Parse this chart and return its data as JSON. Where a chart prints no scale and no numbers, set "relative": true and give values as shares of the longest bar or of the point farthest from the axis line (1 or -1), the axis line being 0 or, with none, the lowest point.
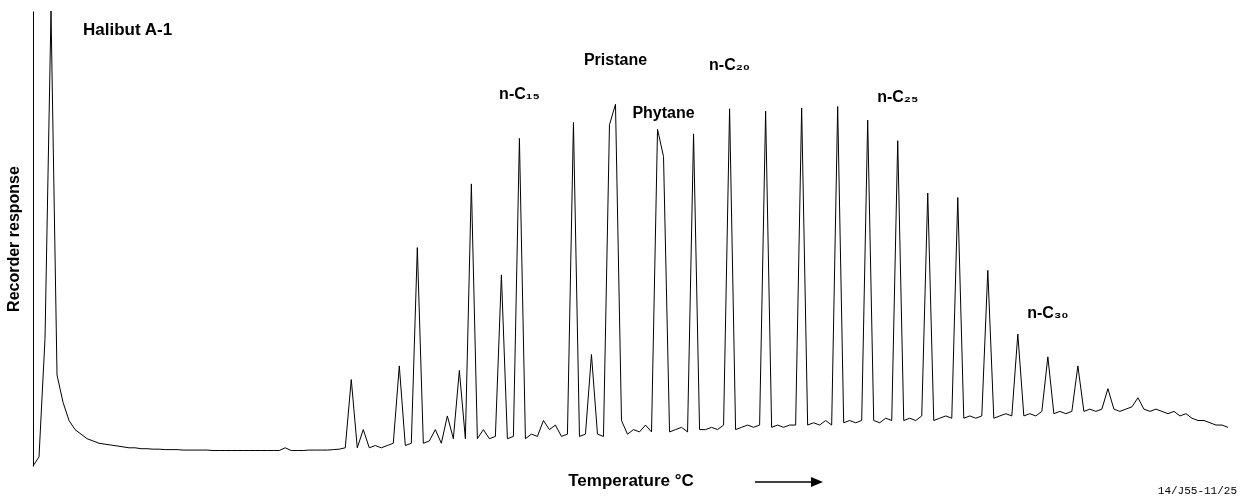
{
  "chart_data": {
    "type": "line",
    "title": "Halibut A-1",
    "xlabel": "Temperature °C",
    "ylabel": "Recorder response",
    "relative": true,
    "color": "#000000",
    "annotations": [
      {
        "text": "n-C₁₅",
        "y": 0.72
      },
      {
        "text": "Pristane",
        "y": 0.795
      },
      {
        "text": "Phytane",
        "y": 0.68
      },
      {
        "text": "n-C₂₀",
        "y": 0.785
      },
      {
        "text": "n-C₂₅",
        "y": 0.715
      },
      {
        "text": "n-C₃₀",
        "y": 0.24
      },
      "14/J55-11/25"
    ],
    "categories": [
      null,
      null,
      null,
      null,
      null,
      null,
      null,
      null,
      null,
      null,
      null,
      null,
      null,
      null,
      null,
      null,
      null,
      null,
      null,
      null,
      null,
      null,
      null,
      null,
      null,
      null,
      null,
      null,
      null,
      null,
      null,
      null,
      null,
      null,
      null,
      null,
      null,
      null,
      null,
      null,
      null,
      null,
      null,
      null,
      null,
      null,
      null,
      null,
      null,
      null,
      null,
      null,
      null,
      null,
      null,
      null,
      null,
      null,
      null,
      null,
      null,
      null,
      null,
      null,
      null,
      null,
      null,
      null,
      null,
      null,
      null,
      null,
      null,
      null,
      null,
      null,
      null,
      null,
      null,
      null,
      null,
      null,
      null,
      null,
      null,
      null,
      null,
      null,
      null,
      null,
      null,
      null,
      null,
      null,
      null,
      null,
      null,
      null,
      null,
      null,
      null,
      null,
      null,
      null,
      null,
      null,
      null,
      null,
      null,
      null,
      null,
      null,
      null,
      null,
      null,
      null,
      null,
      null,
      null,
      null,
      null,
      null,
      null,
      null,
      null,
      null,
      null,
      null,
      null,
      null,
      null,
      null,
      null,
      null,
      null,
      null,
      null,
      null,
      null,
      null,
      null,
      null,
      null,
      null,
      null,
      null,
      null,
      null,
      null,
      null,
      null,
      null,
      null,
      null,
      null,
      null,
      null,
      null,
      null,
      null,
      null,
      null,
      null,
      null,
      null,
      null,
      null,
      null,
      null,
      null,
      null,
      null,
      null,
      null,
      null,
      null,
      null,
      null,
      null,
      null,
      null,
      null,
      null,
      null,
      null,
      null,
      null,
      null,
      null,
      null,
      null,
      null,
      null,
      null,
      null,
      null,
      null,
      null,
      null,
      null
    ],
    "values": [
      0,
      0.02,
      0.28,
      1,
      0.2,
      0.14,
      0.1,
      0.08,
      0.07,
      0.06,
      0.055,
      0.05,
      0.048,
      0.046,
      0.044,
      0.042,
      0.04,
      0.04,
      0.038,
      0.038,
      0.037,
      0.037,
      0.036,
      0.036,
      0.036,
      0.035,
      0.035,
      0.035,
      0.035,
      0.035,
      0.034,
      0.034,
      0.034,
      0.034,
      0.034,
      0.034,
      0.034,
      0.034,
      0.034,
      0.034,
      0.034,
      0.034,
      0.04,
      0.034,
      0.034,
      0.034,
      0.035,
      0.035,
      0.035,
      0.035,
      0.036,
      0.037,
      0.04,
      0.19,
      0.04,
      0.08,
      0.04,
      0.045,
      0.04,
      0.045,
      0.05,
      0.22,
      0.045,
      0.05,
      0.48,
      0.05,
      0.055,
      0.08,
      0.05,
      0.11,
      0.06,
      0.21,
      0.06,
      0.62,
      0.06,
      0.08,
      0.06,
      0.065,
      0.42,
      0.06,
      0.065,
      0.72,
      0.06,
      0.07,
      0.065,
      0.1,
      0.08,
      0.09,
      0.065,
      0.07,
      0.755,
      0.065,
      0.07,
      0.245,
      0.07,
      0.065,
      0.75,
      0.795,
      0.1,
      0.07,
      0.08,
      0.075,
      0.09,
      0.075,
      0.74,
      0.68,
      0.075,
      0.08,
      0.085,
      0.075,
      0.73,
      0.08,
      0.08,
      0.085,
      0.08,
      0.09,
      0.785,
      0.08,
      0.085,
      0.09,
      0.085,
      0.09,
      0.78,
      0.085,
      0.09,
      0.085,
      0.09,
      0.09,
      0.787,
      0.09,
      0.095,
      0.09,
      0.1,
      0.09,
      0.79,
      0.095,
      0.1,
      0.095,
      0.1,
      0.76,
      0.1,
      0.095,
      0.105,
      0.1,
      0.715,
      0.1,
      0.105,
      0.1,
      0.11,
      0.6,
      0.1,
      0.105,
      0.11,
      0.105,
      0.59,
      0.105,
      0.11,
      0.105,
      0.11,
      0.43,
      0.105,
      0.11,
      0.115,
      0.11,
      0.29,
      0.11,
      0.115,
      0.11,
      0.12,
      0.24,
      0.115,
      0.12,
      0.115,
      0.12,
      0.22,
      0.12,
      0.125,
      0.12,
      0.125,
      0.17,
      0.125,
      0.12,
      0.125,
      0.13,
      0.15,
      0.125,
      0.12,
      0.125,
      0.12,
      0.115,
      0.12,
      0.11,
      0.115,
      0.105,
      0.1,
      0.1,
      0.095,
      0.09,
      0.09,
      0.085
    ]
  }
}
